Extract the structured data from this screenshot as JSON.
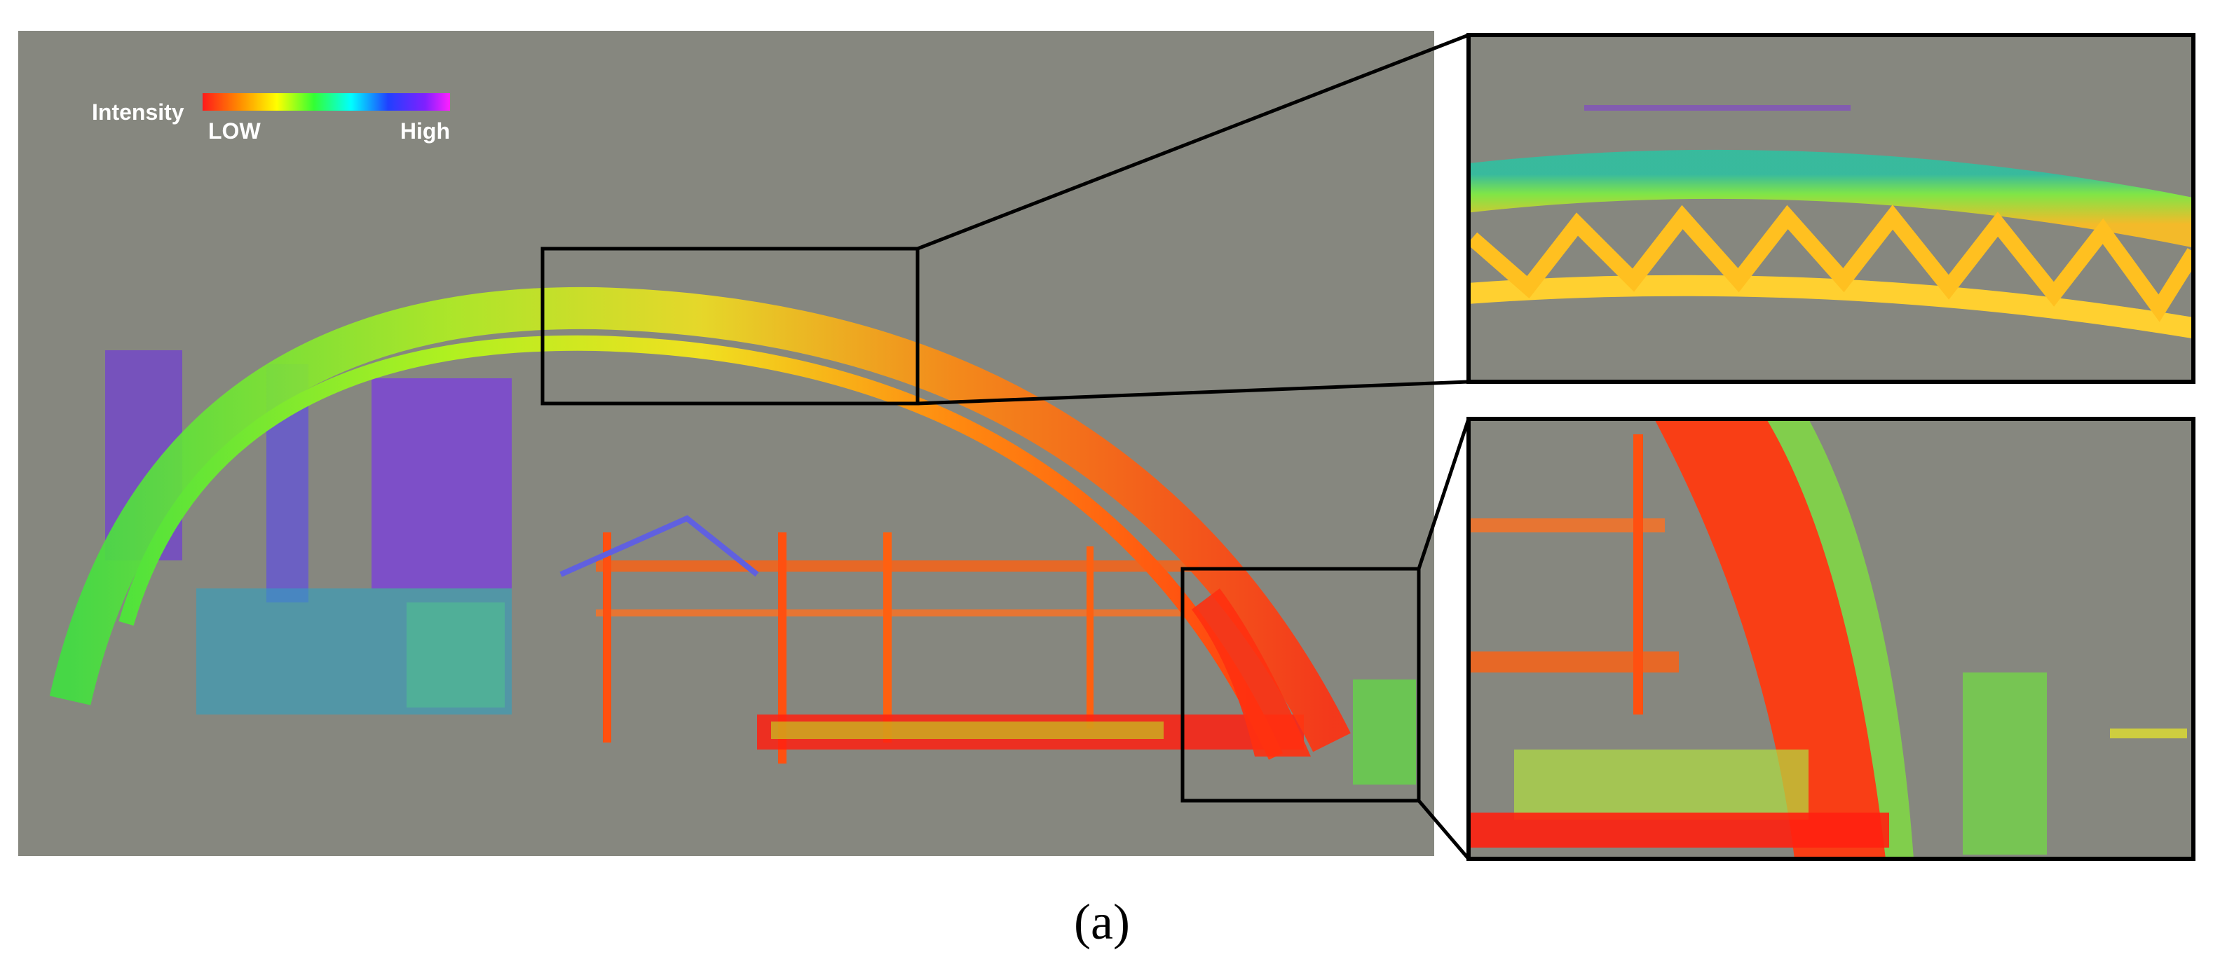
{
  "legend": {
    "title": "Intensity",
    "low": "LOW",
    "high": "High"
  },
  "caption": "(a)"
}
